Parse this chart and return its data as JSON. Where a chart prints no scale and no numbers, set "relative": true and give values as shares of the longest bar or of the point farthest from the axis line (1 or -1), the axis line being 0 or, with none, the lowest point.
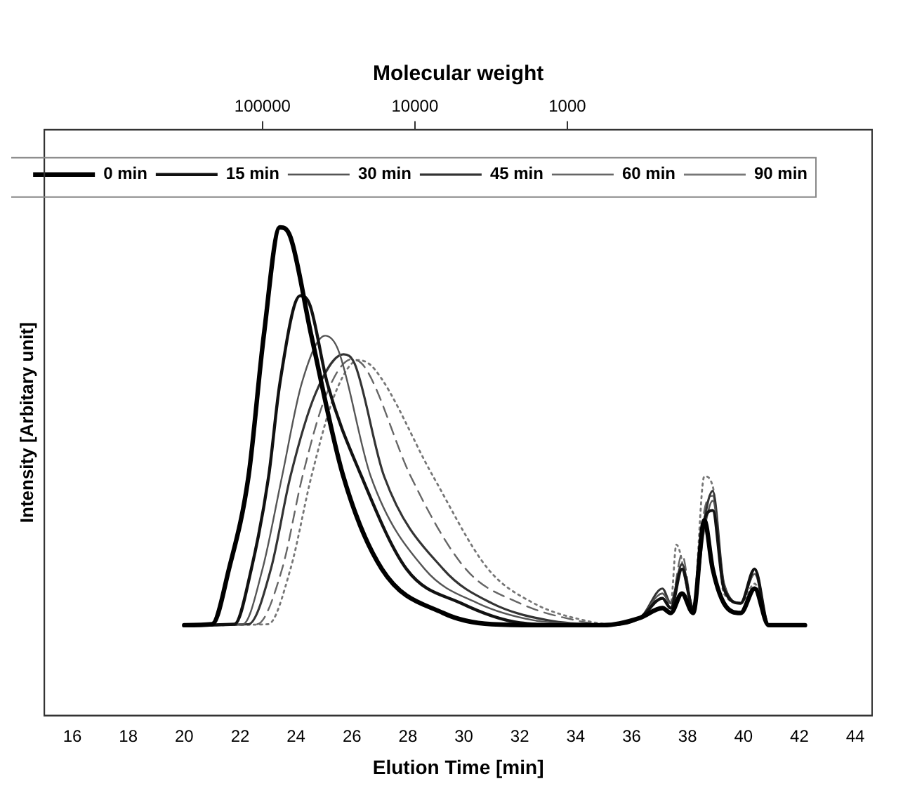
{
  "chart_data": {
    "type": "line",
    "relative": true,
    "xlabel": "Elution Time [min]",
    "ylabel": "Intensity [Arbitary unit]",
    "x2label": "Molecular weight",
    "xlim": [
      15,
      44.6
    ],
    "xticks": [
      16,
      18,
      20,
      22,
      24,
      26,
      28,
      30,
      32,
      34,
      36,
      38,
      40,
      42,
      44
    ],
    "x2lim": [
      2700000,
      10
    ],
    "x2ticks": [
      100000,
      10000,
      1000
    ],
    "log": "x2",
    "legend": "top right",
    "grid": false,
    "marker": "none",
    "series": [
      {
        "name": "0 min",
        "color": "#000000",
        "line_style": "solid",
        "x": [
          20,
          21,
          21.6,
          22.3,
          22.85,
          23.42,
          23.8,
          24.54,
          25.69,
          27.07,
          29.26,
          31,
          33,
          35,
          36.3,
          37.1,
          37.4,
          37.8,
          38.2,
          38.6,
          38.9,
          39.3,
          39.9,
          40.4,
          40.9,
          42.2
        ],
        "values": [
          0.185,
          0.187,
          0.3,
          0.49,
          0.78,
          1.0,
          0.98,
          0.78,
          0.49,
          0.3,
          0.21,
          0.187,
          0.185,
          0.185,
          0.2,
          0.22,
          0.21,
          0.25,
          0.21,
          0.4,
          0.3,
          0.23,
          0.21,
          0.26,
          0.185,
          0.185
        ]
      },
      {
        "name": "15 min",
        "color": "#111111",
        "line_style": "solid",
        "x": [
          20,
          21.8,
          22.4,
          23.02,
          23.42,
          24.15,
          24.5,
          25.12,
          26.34,
          27.95,
          29.9,
          32,
          34,
          35,
          36.3,
          37.1,
          37.4,
          37.8,
          38.2,
          38.6,
          38.9,
          39.3,
          39.9,
          40.4,
          40.9,
          42
        ],
        "values": [
          0.185,
          0.187,
          0.3,
          0.49,
          0.68,
          0.86,
          0.84,
          0.68,
          0.49,
          0.3,
          0.23,
          0.19,
          0.185,
          0.185,
          0.2,
          0.24,
          0.22,
          0.3,
          0.22,
          0.4,
          0.42,
          0.26,
          0.23,
          0.3,
          0.185,
          0.185
        ]
      },
      {
        "name": "30 min",
        "color": "#555555",
        "line_style": "solid",
        "x": [
          20,
          22.1,
          22.8,
          23.5,
          24.2,
          25.04,
          25.5,
          26.67,
          28.6,
          30.5,
          32.5,
          34.5,
          35,
          36.3,
          37.1,
          37.4,
          37.8,
          38.2,
          38.6,
          38.9,
          39.3,
          39.9,
          40.4,
          40.9,
          42
        ],
        "values": [
          0.185,
          0.187,
          0.3,
          0.49,
          0.68,
          0.778,
          0.75,
          0.49,
          0.3,
          0.23,
          0.195,
          0.187,
          0.185,
          0.2,
          0.25,
          0.23,
          0.3,
          0.22,
          0.38,
          0.44,
          0.27,
          0.23,
          0.29,
          0.185,
          0.185
        ]
      },
      {
        "name": "45 min",
        "color": "#333333",
        "line_style": "solid",
        "x": [
          20,
          22.3,
          23.1,
          23.8,
          24.7,
          25.7,
          26.1,
          27.15,
          29.26,
          31,
          33,
          34.8,
          36.3,
          37.1,
          37.4,
          37.8,
          38.2,
          38.6,
          38.9,
          39.3,
          39.9,
          40.4,
          40.9,
          42
        ],
        "values": [
          0.185,
          0.187,
          0.3,
          0.49,
          0.66,
          0.74,
          0.72,
          0.49,
          0.3,
          0.23,
          0.195,
          0.187,
          0.2,
          0.26,
          0.23,
          0.31,
          0.22,
          0.4,
          0.46,
          0.27,
          0.23,
          0.3,
          0.185,
          0.185
        ]
      },
      {
        "name": "60 min",
        "color": "#666666",
        "line_style": "dashed",
        "x": [
          20,
          22.6,
          23.5,
          24.23,
          25.1,
          26.0,
          26.5,
          28.1,
          30.07,
          32,
          34,
          35,
          36.3,
          37.1,
          37.4,
          37.8,
          38.2,
          38.6,
          38.9,
          39.3,
          39.9,
          40.4,
          40.9,
          42
        ],
        "values": [
          0.185,
          0.187,
          0.3,
          0.49,
          0.66,
          0.73,
          0.71,
          0.49,
          0.3,
          0.23,
          0.195,
          0.187,
          0.2,
          0.25,
          0.23,
          0.33,
          0.22,
          0.42,
          0.45,
          0.26,
          0.23,
          0.29,
          0.185,
          0.185
        ]
      },
      {
        "name": "90 min",
        "color": "#777777",
        "line_style": "dotted",
        "x": [
          20,
          23.0,
          23.8,
          24.55,
          25.4,
          26.24,
          26.8,
          28.9,
          30.87,
          32.5,
          34.3,
          35.3,
          36.3,
          37.1,
          37.4,
          37.6,
          38.2,
          38.6,
          38.9,
          39.3,
          39.9,
          40.4,
          40.9,
          42
        ],
        "values": [
          0.185,
          0.187,
          0.3,
          0.49,
          0.66,
          0.728,
          0.71,
          0.49,
          0.3,
          0.23,
          0.195,
          0.187,
          0.2,
          0.24,
          0.23,
          0.35,
          0.22,
          0.49,
          0.47,
          0.25,
          0.23,
          0.27,
          0.185,
          0.185
        ]
      }
    ]
  }
}
